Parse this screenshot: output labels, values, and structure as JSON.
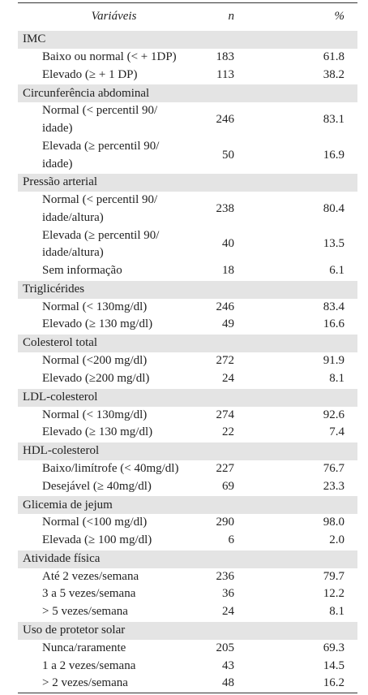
{
  "table": {
    "header": [
      "Variáveis",
      "n",
      "%"
    ],
    "groups": [
      {
        "label": "IMC",
        "rows": [
          [
            "Baixo ou normal (< + 1DP)",
            "183",
            "61.8"
          ],
          [
            "Elevado (≥ + 1 DP)",
            "113",
            "38.2"
          ]
        ]
      },
      {
        "label": "Circunferência abdominal",
        "rows": [
          [
            "Normal (< percentil 90/\nidade)",
            "246",
            "83.1"
          ],
          [
            "Elevada (≥ percentil 90/\nidade)",
            "50",
            "16.9"
          ]
        ]
      },
      {
        "label": "Pressão arterial",
        "rows": [
          [
            "Normal (< percentil 90/\nidade/altura)",
            "238",
            "80.4"
          ],
          [
            "Elevada (≥ percentil 90/\nidade/altura)",
            "40",
            "13.5"
          ],
          [
            "Sem informação",
            "18",
            "6.1"
          ]
        ]
      },
      {
        "label": "Triglicérides",
        "rows": [
          [
            "Normal (< 130mg/dl)",
            "246",
            "83.4"
          ],
          [
            "Elevado (≥ 130 mg/dl)",
            "49",
            "16.6"
          ]
        ]
      },
      {
        "label": "Colesterol total",
        "rows": [
          [
            "Normal (<200 mg/dl)",
            "272",
            "91.9"
          ],
          [
            "Elevado (≥200 mg/dl)",
            "24",
            "8.1"
          ]
        ]
      },
      {
        "label": "LDL-colesterol",
        "rows": [
          [
            "Normal (< 130mg/dl)",
            "274",
            "92.6"
          ],
          [
            "Elevado (≥ 130 mg/dl)",
            "22",
            "7.4"
          ]
        ]
      },
      {
        "label": "HDL-colesterol",
        "rows": [
          [
            "Baixo/limítrofe (< 40mg/dl)",
            "227",
            "76.7"
          ],
          [
            "Desejável (≥ 40mg/dl)",
            "69",
            "23.3"
          ]
        ]
      },
      {
        "label": "Glicemia de jejum",
        "rows": [
          [
            "Normal (<100 mg/dl)",
            "290",
            "98.0"
          ],
          [
            "Elevada (≥ 100 mg/dl)",
            "6",
            "2.0"
          ]
        ]
      },
      {
        "label": "Atividade física",
        "rows": [
          [
            "Até 2 vezes/semana",
            "236",
            "79.7"
          ],
          [
            "3 a 5 vezes/semana",
            "36",
            "12.2"
          ],
          [
            "> 5 vezes/semana",
            "24",
            "8.1"
          ]
        ]
      },
      {
        "label": "Uso de protetor solar",
        "rows": [
          [
            "Nunca/raramente",
            "205",
            "69.3"
          ],
          [
            "1 a 2 vezes/semana",
            "43",
            "14.5"
          ],
          [
            "> 2 vezes/semana",
            "48",
            "16.2"
          ]
        ]
      }
    ]
  }
}
